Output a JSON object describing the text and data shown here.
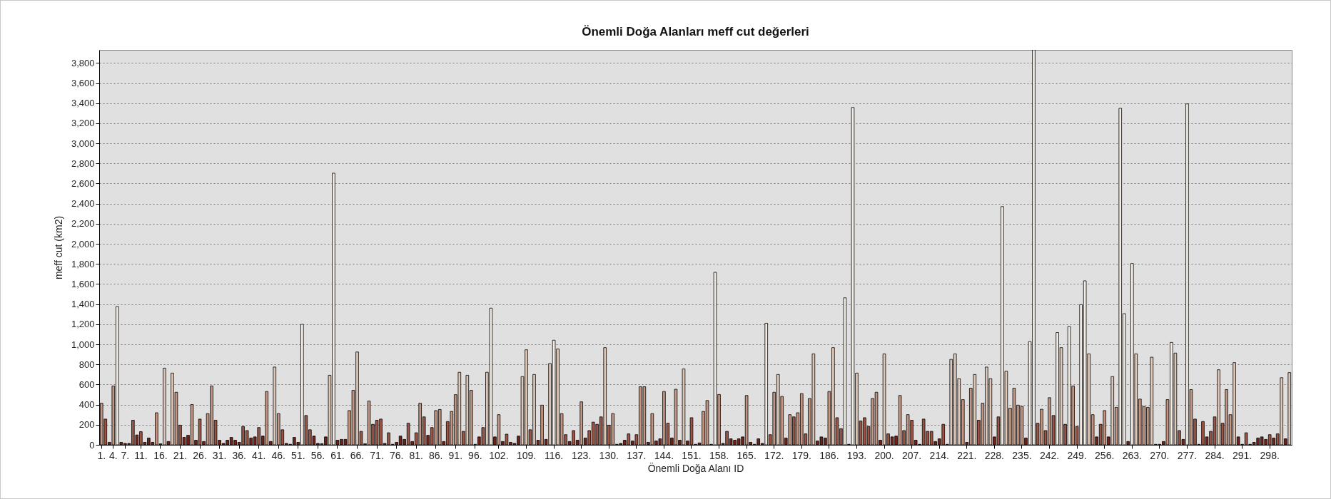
{
  "chart_data": {
    "type": "bar",
    "title": "Önemli Doğa Alanları meff cut değerleri",
    "xlabel": "Önemli Doğa Alanı ID",
    "ylabel": "meff cut (km2)",
    "categories": [
      "1.",
      null,
      null,
      "4.",
      null,
      null,
      "7.",
      null,
      null,
      null,
      "11.",
      null,
      null,
      null,
      null,
      "16.",
      null,
      null,
      null,
      null,
      "21.",
      null,
      null,
      null,
      null,
      "26.",
      null,
      null,
      null,
      null,
      "31.",
      null,
      null,
      null,
      null,
      "36.",
      null,
      null,
      null,
      null,
      "41.",
      null,
      null,
      null,
      null,
      "46.",
      null,
      null,
      null,
      null,
      "51.",
      null,
      null,
      null,
      null,
      "56.",
      null,
      null,
      null,
      null,
      "61.",
      null,
      null,
      null,
      null,
      "66.",
      null,
      null,
      null,
      null,
      "71.",
      null,
      null,
      null,
      null,
      "76.",
      null,
      null,
      null,
      null,
      "81.",
      null,
      null,
      null,
      null,
      "86.",
      null,
      null,
      null,
      null,
      "91.",
      null,
      null,
      null,
      null,
      "96.",
      null,
      null,
      null,
      null,
      null,
      "102.",
      null,
      null,
      null,
      null,
      null,
      null,
      "109.",
      null,
      null,
      null,
      null,
      null,
      null,
      "116.",
      null,
      null,
      null,
      null,
      null,
      null,
      "123.",
      null,
      null,
      null,
      null,
      null,
      null,
      "130.",
      null,
      null,
      null,
      null,
      null,
      null,
      "137.",
      null,
      null,
      null,
      null,
      null,
      null,
      "144.",
      null,
      null,
      null,
      null,
      null,
      null,
      "151.",
      null,
      null,
      null,
      null,
      null,
      null,
      "158.",
      null,
      null,
      null,
      null,
      null,
      null,
      "165.",
      null,
      null,
      null,
      null,
      null,
      null,
      "172.",
      null,
      null,
      null,
      null,
      null,
      null,
      "179.",
      null,
      null,
      null,
      null,
      null,
      null,
      "186.",
      null,
      null,
      null,
      null,
      null,
      null,
      "193.",
      null,
      null,
      null,
      null,
      null,
      null,
      "200.",
      null,
      null,
      null,
      null,
      null,
      null,
      "207.",
      null,
      null,
      null,
      null,
      null,
      null,
      "214.",
      null,
      null,
      null,
      null,
      null,
      null,
      "221.",
      null,
      null,
      null,
      null,
      null,
      null,
      "228.",
      null,
      null,
      null,
      null,
      null,
      null,
      "235.",
      null,
      null,
      null,
      null,
      null,
      null,
      "242.",
      null,
      null,
      null,
      null,
      null,
      null,
      "249.",
      null,
      null,
      null,
      null,
      null,
      null,
      "256.",
      null,
      null,
      null,
      null,
      null,
      null,
      "263.",
      null,
      null,
      null,
      null,
      null,
      null,
      "270.",
      null,
      null,
      null,
      null,
      null,
      null,
      "277.",
      null,
      null,
      null,
      null,
      null,
      null,
      "284.",
      null,
      null,
      null,
      null,
      null,
      null,
      "291.",
      null,
      null,
      null,
      null,
      null,
      null,
      "298.",
      null,
      null,
      null,
      null,
      null
    ],
    "values": [
      414,
      256,
      25,
      586,
      1376,
      25,
      14,
      14,
      245,
      98,
      131,
      25,
      68,
      25,
      319,
      10,
      763,
      33,
      714,
      523,
      196,
      74,
      95,
      401,
      46,
      256,
      33,
      311,
      586,
      245,
      46,
      14,
      46,
      74,
      46,
      25,
      183,
      142,
      68,
      79,
      172,
      87,
      531,
      33,
      774,
      311,
      150,
      14,
      5,
      74,
      25,
      1199,
      292,
      150,
      87,
      14,
      11,
      79,
      692,
      2703,
      46,
      54,
      54,
      341,
      542,
      924,
      134,
      10,
      436,
      204,
      245,
      256,
      14,
      120,
      5,
      25,
      87,
      54,
      215,
      33,
      120,
      414,
      278,
      95,
      172,
      341,
      352,
      33,
      232,
      332,
      499,
      722,
      134,
      692,
      542,
      5,
      79,
      172,
      722,
      1360,
      79,
      300,
      33,
      106,
      25,
      14,
      87,
      679,
      946,
      150,
      700,
      46,
      395,
      54,
      809,
      1041,
      954,
      311,
      101,
      33,
      142,
      46,
      428,
      68,
      142,
      226,
      204,
      278,
      967,
      196,
      311,
      5,
      14,
      46,
      109,
      38,
      101,
      578,
      578,
      25,
      311,
      38,
      60,
      531,
      215,
      68,
      553,
      46,
      755,
      38,
      270,
      5,
      19,
      332,
      441,
      5,
      1717,
      501,
      14,
      134,
      60,
      46,
      60,
      79,
      491,
      25,
      5,
      60,
      14,
      1210,
      101,
      523,
      700,
      482,
      68,
      300,
      278,
      319,
      510,
      109,
      461,
      905,
      38,
      79,
      68,
      531,
      967,
      270,
      161,
      1463,
      5,
      3357,
      714,
      237,
      270,
      183,
      461,
      523,
      46,
      905,
      109,
      79,
      87,
      491,
      142,
      300,
      245,
      46,
      5,
      256,
      134,
      134,
      33,
      60,
      204,
      5,
      850,
      905,
      659,
      450,
      25,
      564,
      700,
      245,
      414,
      774,
      659,
      79,
      278,
      2371,
      733,
      365,
      564,
      395,
      382,
      68,
      1027,
      3930,
      215,
      354,
      142,
      469,
      292,
      1117,
      967,
      204,
      1177,
      586,
      183,
      1395,
      1632,
      905,
      300,
      79,
      204,
      341,
      79,
      679,
      373,
      3349,
      1305,
      33,
      1804,
      905,
      455,
      382,
      373,
      872,
      5,
      5,
      33,
      450,
      1019,
      913,
      142,
      54,
      3393,
      550,
      256,
      5,
      232,
      79,
      134,
      278,
      747,
      215,
      550,
      300,
      818,
      79,
      5,
      120,
      5,
      25,
      68,
      79,
      54,
      101,
      68,
      109,
      668,
      60,
      719
    ],
    "colors": [
      "#c49580",
      "#9c5444",
      "#6e2219",
      "#c49580",
      "#f3ede6",
      "#6e2219",
      "#6e2219",
      "#6e2219",
      "#9c5444",
      "#6e2219",
      "#9c5444",
      "#6e2219",
      "#6e2219",
      "#6e2219",
      "#c49580",
      "#6e2219",
      "#dfc8b8",
      "#6e2219",
      "#dfc8b8",
      "#c49580",
      "#9c5444",
      "#6e2219",
      "#6e2219",
      "#c49580",
      "#6e2219",
      "#9c5444",
      "#6e2219",
      "#c49580",
      "#c49580",
      "#9c5444",
      "#6e2219",
      "#6e2219",
      "#6e2219",
      "#6e2219",
      "#6e2219",
      "#6e2219",
      "#9c5444",
      "#9c5444",
      "#6e2219",
      "#6e2219",
      "#9c5444",
      "#6e2219",
      "#c49580",
      "#6e2219",
      "#dfc8b8",
      "#c49580",
      "#9c5444",
      "#6e2219",
      "#6e2219",
      "#6e2219",
      "#6e2219",
      "#f3ede6",
      "#9c5444",
      "#9c5444",
      "#6e2219",
      "#6e2219",
      "#6e2219",
      "#6e2219",
      "#dfc8b8",
      "#f3ede6",
      "#6e2219",
      "#6e2219",
      "#6e2219",
      "#c49580",
      "#c49580",
      "#dfc8b8",
      "#9c5444",
      "#6e2219",
      "#c49580",
      "#9c5444",
      "#9c5444",
      "#9c5444",
      "#6e2219",
      "#9c5444",
      "#6e2219",
      "#6e2219",
      "#6e2219",
      "#6e2219",
      "#9c5444",
      "#6e2219",
      "#9c5444",
      "#c49580",
      "#9c5444",
      "#6e2219",
      "#9c5444",
      "#c49580",
      "#c49580",
      "#6e2219",
      "#9c5444",
      "#c49580",
      "#c49580",
      "#dfc8b8",
      "#9c5444",
      "#dfc8b8",
      "#c49580",
      "#6e2219",
      "#6e2219",
      "#9c5444",
      "#dfc8b8",
      "#f3ede6",
      "#6e2219",
      "#c49580",
      "#6e2219",
      "#9c5444",
      "#6e2219",
      "#6e2219",
      "#6e2219",
      "#dfc8b8",
      "#dfc8b8",
      "#9c5444",
      "#dfc8b8",
      "#6e2219",
      "#c49580",
      "#6e2219",
      "#dfc8b8",
      "#f3ede6",
      "#dfc8b8",
      "#c49580",
      "#9c5444",
      "#6e2219",
      "#9c5444",
      "#6e2219",
      "#c49580",
      "#6e2219",
      "#9c5444",
      "#9c5444",
      "#9c5444",
      "#9c5444",
      "#dfc8b8",
      "#9c5444",
      "#c49580",
      "#6e2219",
      "#6e2219",
      "#6e2219",
      "#9c5444",
      "#6e2219",
      "#9c5444",
      "#c49580",
      "#c49580",
      "#6e2219",
      "#c49580",
      "#6e2219",
      "#6e2219",
      "#c49580",
      "#9c5444",
      "#6e2219",
      "#c49580",
      "#6e2219",
      "#dfc8b8",
      "#6e2219",
      "#9c5444",
      "#6e2219",
      "#6e2219",
      "#c49580",
      "#c49580",
      "#6e2219",
      "#f3ede6",
      "#c49580",
      "#6e2219",
      "#9c5444",
      "#6e2219",
      "#6e2219",
      "#6e2219",
      "#6e2219",
      "#c49580",
      "#6e2219",
      "#6e2219",
      "#6e2219",
      "#6e2219",
      "#f3ede6",
      "#9c5444",
      "#c49580",
      "#dfc8b8",
      "#c49580",
      "#6e2219",
      "#c49580",
      "#9c5444",
      "#c49580",
      "#c49580",
      "#9c5444",
      "#c49580",
      "#dfc8b8",
      "#6e2219",
      "#6e2219",
      "#6e2219",
      "#c49580",
      "#dfc8b8",
      "#9c5444",
      "#9c5444",
      "#f3ede6",
      "#6e2219",
      "#f3ede6",
      "#dfc8b8",
      "#9c5444",
      "#9c5444",
      "#9c5444",
      "#c49580",
      "#c49580",
      "#6e2219",
      "#dfc8b8",
      "#9c5444",
      "#6e2219",
      "#6e2219",
      "#c49580",
      "#9c5444",
      "#c49580",
      "#9c5444",
      "#6e2219",
      "#6e2219",
      "#9c5444",
      "#9c5444",
      "#9c5444",
      "#6e2219",
      "#6e2219",
      "#9c5444",
      "#6e2219",
      "#dfc8b8",
      "#dfc8b8",
      "#dfc8b8",
      "#c49580",
      "#6e2219",
      "#c49580",
      "#dfc8b8",
      "#9c5444",
      "#c49580",
      "#dfc8b8",
      "#dfc8b8",
      "#6e2219",
      "#9c5444",
      "#f3ede6",
      "#dfc8b8",
      "#c49580",
      "#c49580",
      "#c49580",
      "#c49580",
      "#6e2219",
      "#f3ede6",
      "#f3ede6",
      "#9c5444",
      "#c49580",
      "#9c5444",
      "#c49580",
      "#9c5444",
      "#f3ede6",
      "#dfc8b8",
      "#9c5444",
      "#f3ede6",
      "#c49580",
      "#9c5444",
      "#f3ede6",
      "#f3ede6",
      "#dfc8b8",
      "#c49580",
      "#6e2219",
      "#9c5444",
      "#c49580",
      "#6e2219",
      "#dfc8b8",
      "#c49580",
      "#f3ede6",
      "#f3ede6",
      "#6e2219",
      "#f3ede6",
      "#dfc8b8",
      "#c49580",
      "#c49580",
      "#c49580",
      "#dfc8b8",
      "#6e2219",
      "#6e2219",
      "#6e2219",
      "#c49580",
      "#f3ede6",
      "#dfc8b8",
      "#9c5444",
      "#6e2219",
      "#f3ede6",
      "#c49580",
      "#9c5444",
      "#6e2219",
      "#9c5444",
      "#6e2219",
      "#9c5444",
      "#9c5444",
      "#dfc8b8",
      "#9c5444",
      "#c49580",
      "#c49580",
      "#dfc8b8",
      "#6e2219",
      "#6e2219",
      "#9c5444",
      "#6e2219",
      "#6e2219",
      "#6e2219",
      "#6e2219",
      "#6e2219",
      "#9c5444",
      "#6e2219",
      "#9c5444",
      "#dfc8b8",
      "#6e2219",
      "#dfc8b8"
    ],
    "ylim": [
      0,
      3930
    ],
    "yticks": [
      0,
      200,
      400,
      600,
      800,
      {
        "value": 1000,
        "label": "1,000"
      },
      {
        "value": 1200,
        "label": "1,200"
      },
      {
        "value": 1400,
        "label": "1,400"
      },
      {
        "value": 1600,
        "label": "1,600"
      },
      {
        "value": 1800,
        "label": "1,800"
      },
      {
        "value": 2000,
        "label": "2,000"
      },
      {
        "value": 2200,
        "label": "2,200"
      },
      {
        "value": 2400,
        "label": "2,400"
      },
      {
        "value": 2600,
        "label": "2,600"
      },
      {
        "value": 2800,
        "label": "2,800"
      },
      {
        "value": 3000,
        "label": "3,000"
      },
      {
        "value": 3200,
        "label": "3,200"
      },
      {
        "value": 3400,
        "label": "3,400"
      },
      {
        "value": 3600,
        "label": "3,600"
      },
      {
        "value": 3800,
        "label": "3,800"
      }
    ],
    "grid": "y"
  }
}
